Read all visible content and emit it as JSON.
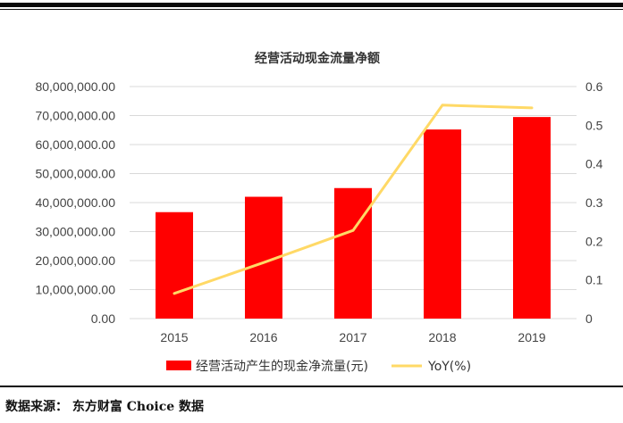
{
  "chart_data": {
    "type": "bar",
    "title": "经营活动现金流量净额",
    "categories": [
      "2015",
      "2016",
      "2017",
      "2018",
      "2019"
    ],
    "series": [
      {
        "name": "经营活动产生的现金净流量(元)",
        "type": "bar",
        "axis": "left",
        "color": "#ff0000",
        "values": [
          36700000,
          42000000,
          45000000,
          65200000,
          69500000
        ]
      },
      {
        "name": "YoY(%)",
        "type": "line",
        "axis": "right",
        "color": "#ffd966",
        "values": [
          0.065,
          0.145,
          0.228,
          0.552,
          0.545
        ]
      }
    ],
    "y_left": {
      "range": [
        0,
        80000000
      ],
      "ticks": [
        "0.00",
        "10,000,000.00",
        "20,000,000.00",
        "30,000,000.00",
        "40,000,000.00",
        "50,000,000.00",
        "60,000,000.00",
        "70,000,000.00",
        "80,000,000.00"
      ]
    },
    "y_right": {
      "range": [
        0,
        0.6
      ],
      "ticks": [
        "0",
        "0.1",
        "0.2",
        "0.3",
        "0.4",
        "0.5",
        "0.6"
      ]
    },
    "grid": true,
    "legend_position": "bottom"
  },
  "source": "数据来源： 东方财富 Choice 数据"
}
